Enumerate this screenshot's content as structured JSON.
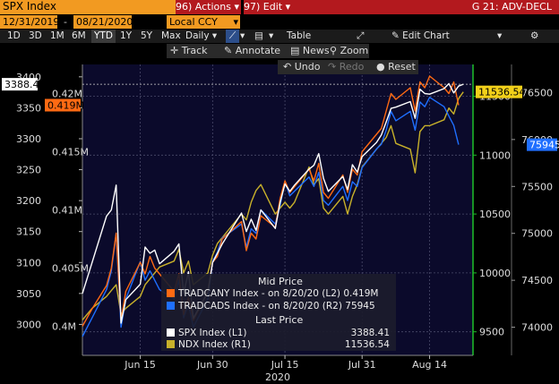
{
  "header": {
    "ticker": "SPX Index",
    "actions_label": "Actions",
    "actions_code": "96)",
    "edit_label": "Edit",
    "edit_code": "97)",
    "right_title": "G 21: ADV-DECL",
    "start_date": "12/31/2019",
    "end_date": "08/21/2020",
    "currency": "Local CCY"
  },
  "toolbar": {
    "ranges": [
      "1D",
      "3D",
      "1M",
      "6M",
      "YTD",
      "1Y",
      "5Y",
      "Max"
    ],
    "active_range": "YTD",
    "frequency": "Daily",
    "table_label": "Table",
    "edit_chart_label": "Edit Chart"
  },
  "tools": {
    "track": "Track",
    "annotate": "Annotate",
    "news": "News",
    "zoom": "Zoom",
    "undo": "Undo",
    "redo": "Redo",
    "reset": "Reset"
  },
  "colors": {
    "plot_bg": "#0b0a2b",
    "spx": "#ffffff",
    "ndx": "#c8b12a",
    "tradcany": "#ff6a13",
    "tradcads": "#1f6fff",
    "axis_green": "#1fbf2a",
    "header_orange": "#f29a21",
    "header_red": "#b3191e"
  },
  "chart_data": {
    "type": "line",
    "x_title": "2020",
    "x_ticks": [
      {
        "date": "2020-06-15",
        "label": "Jun 15"
      },
      {
        "date": "2020-06-30",
        "label": "Jun 30"
      },
      {
        "date": "2020-07-15",
        "label": "Jul 15"
      },
      {
        "date": "2020-07-31",
        "label": "Jul 31"
      },
      {
        "date": "2020-08-14",
        "label": "Aug 14"
      }
    ],
    "xlim": [
      "2020-06-03",
      "2020-08-23"
    ],
    "axes": {
      "L1": {
        "ylim": [
          2950,
          3420
        ],
        "ticks": [
          3000,
          3050,
          3100,
          3150,
          3200,
          3250,
          3300,
          3350,
          3400
        ]
      },
      "L2": {
        "ylim": [
          0.3975,
          0.4225
        ],
        "ticks": [
          0.4,
          0.405,
          0.41,
          0.415,
          0.42
        ],
        "tick_labels": [
          "0.4M",
          "0.405M",
          "0.41M",
          "0.415M",
          "0.42M"
        ]
      },
      "R1": {
        "ylim": [
          9300,
          11770
        ],
        "ticks": [
          9500,
          10000,
          10500,
          11000,
          11500
        ]
      },
      "R2": {
        "ylim": [
          73700,
          76800
        ],
        "ticks": [
          74000,
          74500,
          75000,
          75500,
          76000,
          76500
        ]
      }
    },
    "series": [
      {
        "name": "SPX Index",
        "axis": "L1",
        "last_label": "3388.41",
        "points": [
          [
            "2020-06-03",
            3050
          ],
          [
            "2020-06-05",
            3100
          ],
          [
            "2020-06-08",
            3175
          ],
          [
            "2020-06-09",
            3185
          ],
          [
            "2020-06-10",
            3225
          ],
          [
            "2020-06-11",
            3002
          ],
          [
            "2020-06-12",
            3040
          ],
          [
            "2020-06-15",
            3065
          ],
          [
            "2020-06-16",
            3125
          ],
          [
            "2020-06-17",
            3115
          ],
          [
            "2020-06-18",
            3120
          ],
          [
            "2020-06-19",
            3098
          ],
          [
            "2020-06-22",
            3118
          ],
          [
            "2020-06-23",
            3130
          ],
          [
            "2020-06-24",
            3050
          ],
          [
            "2020-06-25",
            3085
          ],
          [
            "2020-06-26",
            3010
          ],
          [
            "2020-06-29",
            3052
          ],
          [
            "2020-06-30",
            3100
          ],
          [
            "2020-07-01",
            3115
          ],
          [
            "2020-07-02",
            3130
          ],
          [
            "2020-07-06",
            3180
          ],
          [
            "2020-07-07",
            3150
          ],
          [
            "2020-07-08",
            3170
          ],
          [
            "2020-07-09",
            3152
          ],
          [
            "2020-07-10",
            3185
          ],
          [
            "2020-07-13",
            3155
          ],
          [
            "2020-07-14",
            3197
          ],
          [
            "2020-07-15",
            3227
          ],
          [
            "2020-07-16",
            3215
          ],
          [
            "2020-07-17",
            3225
          ],
          [
            "2020-07-20",
            3251
          ],
          [
            "2020-07-21",
            3257
          ],
          [
            "2020-07-22",
            3276
          ],
          [
            "2020-07-23",
            3236
          ],
          [
            "2020-07-24",
            3215
          ],
          [
            "2020-07-27",
            3239
          ],
          [
            "2020-07-28",
            3218
          ],
          [
            "2020-07-29",
            3258
          ],
          [
            "2020-07-30",
            3246
          ],
          [
            "2020-07-31",
            3271
          ],
          [
            "2020-08-03",
            3294
          ],
          [
            "2020-08-04",
            3306
          ],
          [
            "2020-08-05",
            3327
          ],
          [
            "2020-08-06",
            3349
          ],
          [
            "2020-08-07",
            3351
          ],
          [
            "2020-08-10",
            3360
          ],
          [
            "2020-08-11",
            3333
          ],
          [
            "2020-08-12",
            3380
          ],
          [
            "2020-08-13",
            3373
          ],
          [
            "2020-08-14",
            3372
          ],
          [
            "2020-08-17",
            3381
          ],
          [
            "2020-08-18",
            3389
          ],
          [
            "2020-08-19",
            3374
          ],
          [
            "2020-08-20",
            3385
          ],
          [
            "2020-08-21",
            3388
          ]
        ]
      },
      {
        "name": "NDX Index",
        "axis": "R1",
        "last_label": "11536.54",
        "points": [
          [
            "2020-06-03",
            9600
          ],
          [
            "2020-06-05",
            9700
          ],
          [
            "2020-06-08",
            9800
          ],
          [
            "2020-06-09",
            9850
          ],
          [
            "2020-06-10",
            9900
          ],
          [
            "2020-06-11",
            9650
          ],
          [
            "2020-06-12",
            9700
          ],
          [
            "2020-06-15",
            9800
          ],
          [
            "2020-06-16",
            9900
          ],
          [
            "2020-06-17",
            9950
          ],
          [
            "2020-06-18",
            10000
          ],
          [
            "2020-06-19",
            10050
          ],
          [
            "2020-06-22",
            10100
          ],
          [
            "2020-06-23",
            10200
          ],
          [
            "2020-06-24",
            10000
          ],
          [
            "2020-06-25",
            10100
          ],
          [
            "2020-06-26",
            9900
          ],
          [
            "2020-06-29",
            10000
          ],
          [
            "2020-06-30",
            10150
          ],
          [
            "2020-07-01",
            10250
          ],
          [
            "2020-07-02",
            10300
          ],
          [
            "2020-07-06",
            10500
          ],
          [
            "2020-07-07",
            10450
          ],
          [
            "2020-07-08",
            10600
          ],
          [
            "2020-07-09",
            10700
          ],
          [
            "2020-07-10",
            10750
          ],
          [
            "2020-07-13",
            10500
          ],
          [
            "2020-07-14",
            10550
          ],
          [
            "2020-07-15",
            10600
          ],
          [
            "2020-07-16",
            10550
          ],
          [
            "2020-07-17",
            10600
          ],
          [
            "2020-07-20",
            10900
          ],
          [
            "2020-07-21",
            10750
          ],
          [
            "2020-07-22",
            10800
          ],
          [
            "2020-07-23",
            10550
          ],
          [
            "2020-07-24",
            10500
          ],
          [
            "2020-07-27",
            10650
          ],
          [
            "2020-07-28",
            10500
          ],
          [
            "2020-07-29",
            10650
          ],
          [
            "2020-07-30",
            10750
          ],
          [
            "2020-07-31",
            10900
          ],
          [
            "2020-08-03",
            11050
          ],
          [
            "2020-08-04",
            11100
          ],
          [
            "2020-08-05",
            11150
          ],
          [
            "2020-08-06",
            11250
          ],
          [
            "2020-08-07",
            11100
          ],
          [
            "2020-08-10",
            11050
          ],
          [
            "2020-08-11",
            10850
          ],
          [
            "2020-08-12",
            11200
          ],
          [
            "2020-08-13",
            11250
          ],
          [
            "2020-08-14",
            11250
          ],
          [
            "2020-08-17",
            11300
          ],
          [
            "2020-08-18",
            11400
          ],
          [
            "2020-08-19",
            11350
          ],
          [
            "2020-08-20",
            11480
          ],
          [
            "2020-08-21",
            11537
          ]
        ]
      },
      {
        "name": "TRADCANY Index",
        "axis": "L2",
        "last_label": "0.419M",
        "points": [
          [
            "2020-06-03",
            0.4
          ],
          [
            "2020-06-05",
            0.4015
          ],
          [
            "2020-06-08",
            0.4035
          ],
          [
            "2020-06-09",
            0.405
          ],
          [
            "2020-06-10",
            0.408
          ],
          [
            "2020-06-11",
            0.4005
          ],
          [
            "2020-06-12",
            0.403
          ],
          [
            "2020-06-15",
            0.4055
          ],
          [
            "2020-06-16",
            0.4045
          ],
          [
            "2020-06-17",
            0.406
          ],
          [
            "2020-06-18",
            0.405
          ],
          [
            "2020-06-19",
            0.4045
          ],
          [
            "2020-06-22",
            0.403
          ],
          [
            "2020-06-23",
            0.4045
          ],
          [
            "2020-06-24",
            0.401
          ],
          [
            "2020-06-25",
            0.4025
          ],
          [
            "2020-06-26",
            0.4005
          ],
          [
            "2020-06-29",
            0.403
          ],
          [
            "2020-06-30",
            0.4055
          ],
          [
            "2020-07-01",
            0.406
          ],
          [
            "2020-07-02",
            0.4075
          ],
          [
            "2020-07-06",
            0.409
          ],
          [
            "2020-07-07",
            0.4065
          ],
          [
            "2020-07-08",
            0.408
          ],
          [
            "2020-07-09",
            0.4075
          ],
          [
            "2020-07-10",
            0.4095
          ],
          [
            "2020-07-13",
            0.4085
          ],
          [
            "2020-07-14",
            0.411
          ],
          [
            "2020-07-15",
            0.4125
          ],
          [
            "2020-07-16",
            0.4115
          ],
          [
            "2020-07-17",
            0.412
          ],
          [
            "2020-07-20",
            0.4135
          ],
          [
            "2020-07-21",
            0.4125
          ],
          [
            "2020-07-22",
            0.414
          ],
          [
            "2020-07-23",
            0.4115
          ],
          [
            "2020-07-24",
            0.411
          ],
          [
            "2020-07-27",
            0.413
          ],
          [
            "2020-07-28",
            0.4115
          ],
          [
            "2020-07-29",
            0.4135
          ],
          [
            "2020-07-30",
            0.413
          ],
          [
            "2020-07-31",
            0.415
          ],
          [
            "2020-08-03",
            0.4165
          ],
          [
            "2020-08-04",
            0.417
          ],
          [
            "2020-08-05",
            0.4185
          ],
          [
            "2020-08-06",
            0.42
          ],
          [
            "2020-08-07",
            0.4195
          ],
          [
            "2020-08-10",
            0.4205
          ],
          [
            "2020-08-11",
            0.4185
          ],
          [
            "2020-08-12",
            0.421
          ],
          [
            "2020-08-13",
            0.4205
          ],
          [
            "2020-08-14",
            0.4215
          ],
          [
            "2020-08-17",
            0.4205
          ],
          [
            "2020-08-18",
            0.42
          ],
          [
            "2020-08-19",
            0.421
          ],
          [
            "2020-08-20",
            0.419
          ]
        ]
      },
      {
        "name": "TRADCADS Index",
        "axis": "R2",
        "last_label": "75945",
        "points": [
          [
            "2020-06-03",
            73900
          ],
          [
            "2020-06-05",
            74100
          ],
          [
            "2020-06-08",
            74400
          ],
          [
            "2020-06-09",
            74600
          ],
          [
            "2020-06-10",
            75000
          ],
          [
            "2020-06-11",
            74000
          ],
          [
            "2020-06-12",
            74300
          ],
          [
            "2020-06-15",
            74700
          ],
          [
            "2020-06-16",
            74500
          ],
          [
            "2020-06-17",
            74600
          ],
          [
            "2020-06-18",
            74500
          ],
          [
            "2020-06-19",
            74400
          ],
          [
            "2020-06-22",
            74300
          ],
          [
            "2020-06-23",
            74500
          ],
          [
            "2020-06-24",
            74100
          ],
          [
            "2020-06-25",
            74250
          ],
          [
            "2020-06-26",
            74000
          ],
          [
            "2020-06-29",
            74300
          ],
          [
            "2020-06-30",
            74700
          ],
          [
            "2020-07-01",
            74800
          ],
          [
            "2020-07-02",
            74950
          ],
          [
            "2020-07-06",
            75100
          ],
          [
            "2020-07-07",
            74850
          ],
          [
            "2020-07-08",
            75050
          ],
          [
            "2020-07-09",
            75000
          ],
          [
            "2020-07-10",
            75250
          ],
          [
            "2020-07-13",
            75100
          ],
          [
            "2020-07-14",
            75300
          ],
          [
            "2020-07-15",
            75550
          ],
          [
            "2020-07-16",
            75400
          ],
          [
            "2020-07-17",
            75450
          ],
          [
            "2020-07-20",
            75600
          ],
          [
            "2020-07-21",
            75500
          ],
          [
            "2020-07-22",
            75650
          ],
          [
            "2020-07-23",
            75350
          ],
          [
            "2020-07-24",
            75300
          ],
          [
            "2020-07-27",
            75500
          ],
          [
            "2020-07-28",
            75350
          ],
          [
            "2020-07-29",
            75550
          ],
          [
            "2020-07-30",
            75500
          ],
          [
            "2020-07-31",
            75700
          ],
          [
            "2020-08-03",
            75900
          ],
          [
            "2020-08-04",
            75950
          ],
          [
            "2020-08-05",
            76100
          ],
          [
            "2020-08-06",
            76300
          ],
          [
            "2020-08-07",
            76200
          ],
          [
            "2020-08-10",
            76300
          ],
          [
            "2020-08-11",
            76100
          ],
          [
            "2020-08-12",
            76400
          ],
          [
            "2020-08-13",
            76350
          ],
          [
            "2020-08-14",
            76450
          ],
          [
            "2020-08-17",
            76350
          ],
          [
            "2020-08-18",
            76250
          ],
          [
            "2020-08-19",
            76150
          ],
          [
            "2020-08-20",
            75945
          ]
        ]
      }
    ],
    "legend": {
      "heading1": "Mid Price",
      "heading2": "Last Price",
      "rows1": [
        {
          "label": "TRADCANY Index -  on 8/20/20  (L2) 0.419M",
          "color": "#ff6a13"
        },
        {
          "label": "TRADCADS Index -  on 8/20/20  (R2) 75945",
          "color": "#1f6fff"
        }
      ],
      "rows2": [
        {
          "label": "SPX Index  (L1)",
          "value": "3388.41",
          "color": "#ffffff"
        },
        {
          "label": "NDX Index  (R1)",
          "value": "11536.54",
          "color": "#c8b12a"
        }
      ]
    },
    "grid": true
  }
}
